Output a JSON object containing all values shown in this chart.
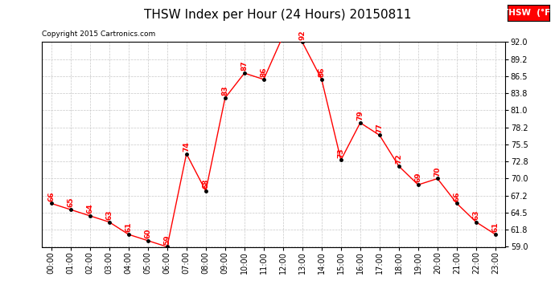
{
  "title": "THSW Index per Hour (24 Hours) 20150811",
  "copyright": "Copyright 2015 Cartronics.com",
  "legend_label": "THSW  (°F)",
  "hours": [
    0,
    1,
    2,
    3,
    4,
    5,
    6,
    7,
    8,
    9,
    10,
    11,
    12,
    13,
    14,
    15,
    16,
    17,
    18,
    19,
    20,
    21,
    22,
    23
  ],
  "values": [
    66,
    65,
    64,
    63,
    61,
    60,
    59,
    74,
    68,
    83,
    87,
    86,
    93,
    92,
    86,
    73,
    79,
    77,
    72,
    69,
    70,
    66,
    63,
    61
  ],
  "xlabels": [
    "00:00",
    "01:00",
    "02:00",
    "03:00",
    "04:00",
    "05:00",
    "06:00",
    "07:00",
    "08:00",
    "09:00",
    "10:00",
    "11:00",
    "12:00",
    "13:00",
    "14:00",
    "15:00",
    "16:00",
    "17:00",
    "18:00",
    "19:00",
    "20:00",
    "21:00",
    "22:00",
    "23:00"
  ],
  "ylim": [
    59.0,
    92.0
  ],
  "yticks": [
    59.0,
    61.8,
    64.5,
    67.2,
    70.0,
    72.8,
    75.5,
    78.2,
    81.0,
    83.8,
    86.5,
    89.2,
    92.0
  ],
  "line_color": "red",
  "marker_color": "black",
  "label_color": "red",
  "bg_color": "white",
  "grid_color": "#c8c8c8",
  "title_color": "black",
  "copyright_color": "black",
  "legend_bg": "red",
  "legend_text_color": "white",
  "title_fontsize": 11,
  "label_fontsize": 6.5,
  "tick_fontsize": 7,
  "copyright_fontsize": 6.5,
  "legend_fontsize": 7.5
}
